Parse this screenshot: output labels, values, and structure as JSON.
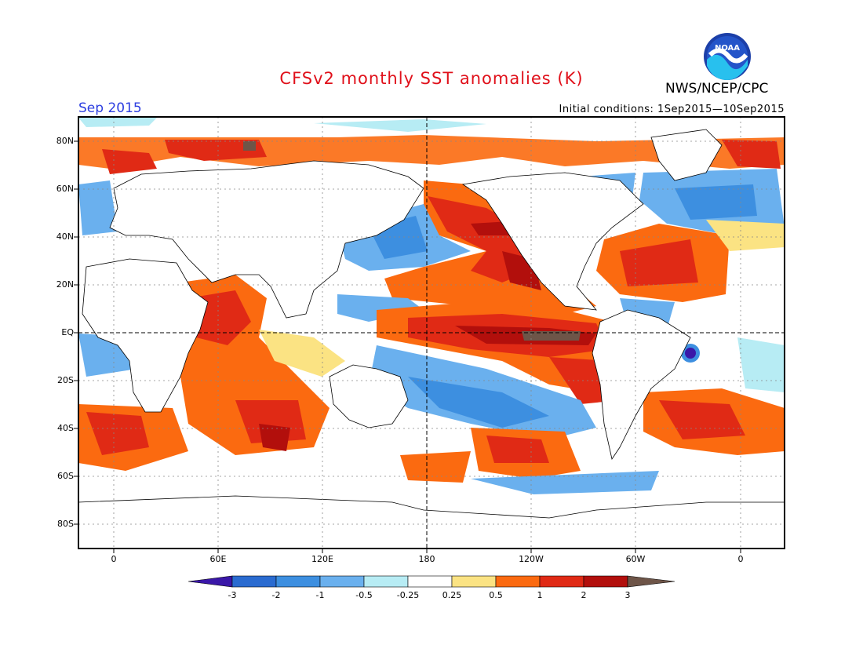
{
  "title": "CFSv2 monthly SST anomalies (K)",
  "month": "Sep 2015",
  "initial_conditions": "Initial conditions: 1Sep2015—10Sep2015",
  "agency": "NWS/NCEP/CPC",
  "logo_text": "NOAA",
  "map": {
    "lat_labels": [
      "80N",
      "60N",
      "40N",
      "20N",
      "EQ",
      "20S",
      "40S",
      "60S",
      "80S"
    ],
    "lon_labels": [
      "0",
      "60E",
      "120E",
      "180",
      "120W",
      "60W",
      "0"
    ]
  },
  "colorbar": {
    "labels": [
      "-3",
      "-2",
      "-1",
      "-0.5",
      "-0.25",
      "0.25",
      "0.5",
      "1",
      "2",
      "3"
    ],
    "colors": [
      "#3a17a8",
      "#2a6bd0",
      "#3d8fe0",
      "#6ab0ee",
      "#b7ecf4",
      "#ffffff",
      "#fbe383",
      "#fb6a10",
      "#e02a15",
      "#b20f0c",
      "#6e5548"
    ]
  }
}
